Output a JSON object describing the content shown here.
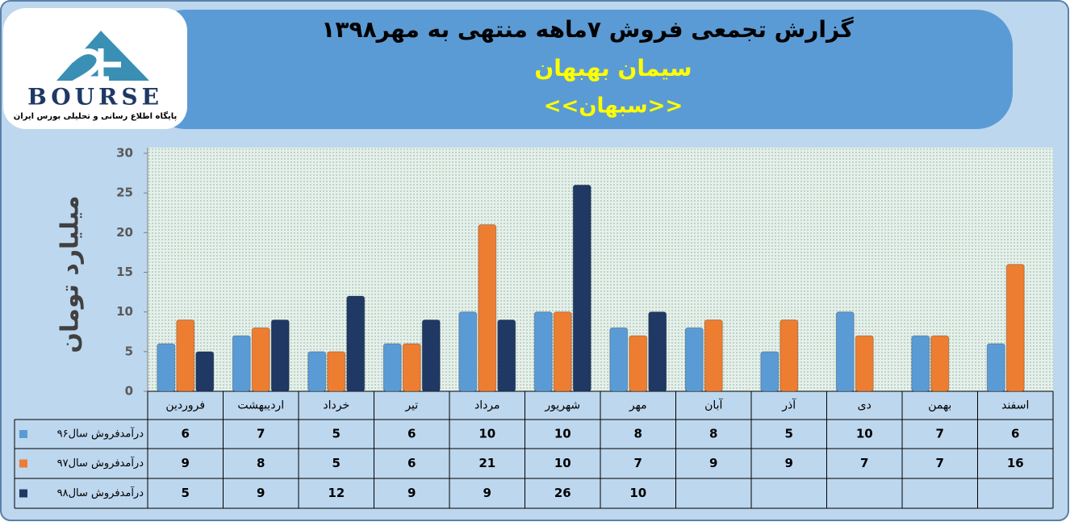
{
  "logo": {
    "brand": "BOURSE",
    "tagline": "پایگاه اطلاع رسانی و تحلیلی بورس ایران"
  },
  "chart_data": {
    "type": "bar",
    "title": "گزارش تجمعی فروش ۷ماهه منتهی به مهر۱۳۹۸",
    "subtitle": "سیمان بهبهان",
    "symbol": "<<سبهان>>",
    "y_label": "میلیارد تومان",
    "categories": [
      "فروردین",
      "اردیبهشت",
      "خرداد",
      "تیر",
      "مرداد",
      "شهریور",
      "مهر",
      "آبان",
      "آذر",
      "دی",
      "بهمن",
      "اسفند"
    ],
    "series": [
      {
        "name": "درآمدفروش سال۹۶",
        "color": "#5b9bd5",
        "values": [
          6,
          7,
          5,
          6,
          10,
          10,
          8,
          8,
          5,
          10,
          7,
          6
        ]
      },
      {
        "name": "درآمدفروش سال۹۷",
        "color": "#ed7d31",
        "values": [
          9,
          8,
          5,
          6,
          21,
          10,
          7,
          9,
          9,
          7,
          7,
          16
        ]
      },
      {
        "name": "درآمدفروش سال۹۸",
        "color": "#1f3864",
        "values": [
          5,
          9,
          12,
          9,
          9,
          26,
          10,
          null,
          null,
          null,
          null,
          null
        ]
      }
    ],
    "ylim": [
      0,
      30
    ],
    "yticks": [
      0,
      5,
      10,
      15,
      20,
      25,
      30
    ]
  }
}
